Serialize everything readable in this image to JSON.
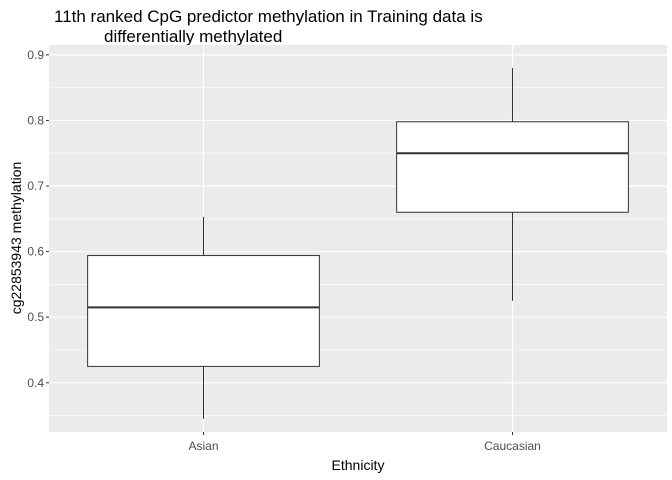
{
  "chart_data": {
    "type": "boxplot",
    "title_line1": "11th ranked CpG predictor methylation in Training data is",
    "title_line2": "differentially methylated",
    "xlabel": "Ethnicity",
    "ylabel": "cg22853943 methylation",
    "ylim": [
      0.325,
      0.915
    ],
    "yticks": [
      0.4,
      0.5,
      0.6,
      0.7,
      0.8,
      0.9
    ],
    "ytick_labels": [
      "0.4",
      "0.5",
      "0.6",
      "0.7",
      "0.8",
      "0.9"
    ],
    "grid": true,
    "categories": [
      "Asian",
      "Caucasian"
    ],
    "boxes": [
      {
        "category": "Asian",
        "min": 0.345,
        "q1": 0.425,
        "median": 0.515,
        "q3": 0.594,
        "max": 0.653
      },
      {
        "category": "Caucasian",
        "min": 0.525,
        "q1": 0.66,
        "median": 0.75,
        "q3": 0.798,
        "max": 0.88
      }
    ],
    "colors": {
      "panel": "#ebebeb",
      "grid": "#ffffff",
      "box_fill": "#ffffff",
      "box_stroke": "#333333",
      "tick_text": "#4d4d4d"
    }
  }
}
